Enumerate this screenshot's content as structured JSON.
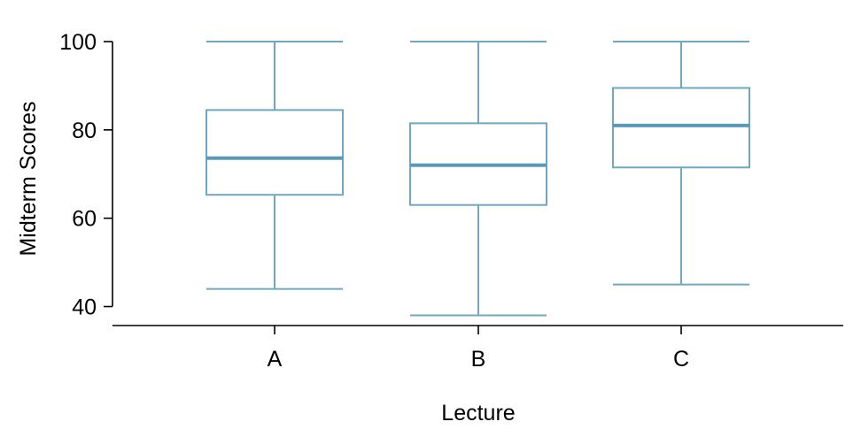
{
  "chart_data": {
    "type": "boxplot",
    "title": "",
    "xlabel": "Lecture",
    "ylabel": "Midterm Scores",
    "ylim": [
      36,
      100
    ],
    "yticks": [
      40,
      60,
      80,
      100
    ],
    "categories": [
      "A",
      "B",
      "C"
    ],
    "boxes": [
      {
        "category": "A",
        "min": 44,
        "q1": 65.3,
        "median": 73.6,
        "q3": 84.5,
        "max": 100
      },
      {
        "category": "B",
        "min": 38,
        "q1": 63.0,
        "median": 72.0,
        "q3": 81.5,
        "max": 100
      },
      {
        "category": "C",
        "min": 45,
        "q1": 71.5,
        "median": 81.0,
        "q3": 89.5,
        "max": 100
      }
    ],
    "grid": false,
    "colors": {
      "box": "#6fa8bf",
      "median": "#5a9ab8",
      "axis": "#000000"
    }
  }
}
